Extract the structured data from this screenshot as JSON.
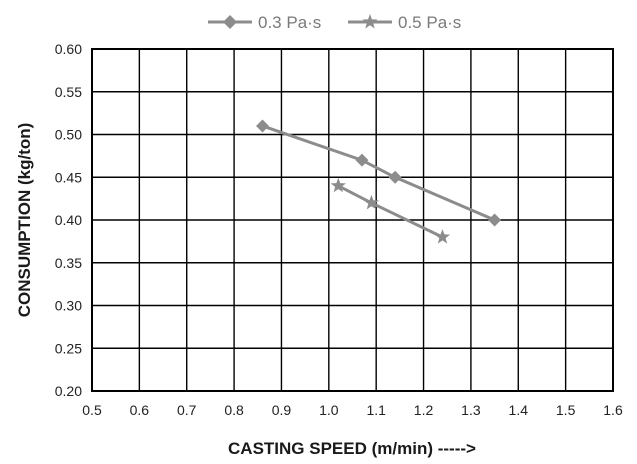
{
  "chart_data": {
    "type": "line",
    "xlabel": "CASTING SPEED (m/min) ----->",
    "ylabel": "CONSUMPTION (kg/ton)",
    "xlim": [
      0.5,
      1.6
    ],
    "ylim": [
      0.2,
      0.6
    ],
    "x_ticks": [
      "0.5",
      "0.6",
      "0.7",
      "0.8",
      "0.9",
      "1.0",
      "1.1",
      "1.2",
      "1.3",
      "1.4",
      "1.5",
      "1.6"
    ],
    "y_ticks": [
      "0.60",
      "0.55",
      "0.50",
      "0.45",
      "0.40",
      "0.35",
      "0.30",
      "0.25",
      "0.20"
    ],
    "grid": true,
    "legend_position": "top",
    "series": [
      {
        "name": "0.3 Pa·s",
        "marker": "diamond",
        "color": "#8c8c8c",
        "points": [
          [
            0.86,
            0.51
          ],
          [
            1.07,
            0.47
          ],
          [
            1.14,
            0.45
          ],
          [
            1.35,
            0.4
          ]
        ]
      },
      {
        "name": "0.5 Pa·s",
        "marker": "star",
        "color": "#8c8c8c",
        "points": [
          [
            1.02,
            0.44
          ],
          [
            1.09,
            0.42
          ],
          [
            1.24,
            0.38
          ]
        ]
      }
    ]
  }
}
